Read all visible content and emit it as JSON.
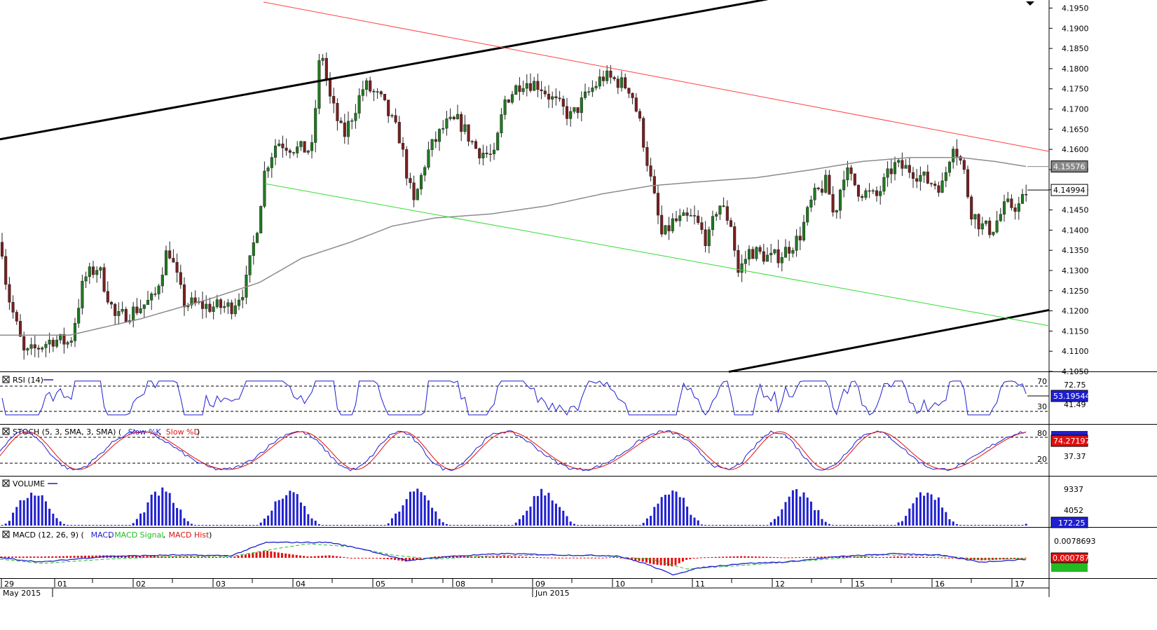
{
  "chart_data": {
    "type": "candlestick",
    "main": {
      "ylim": [
        4.105,
        4.197
      ],
      "yticks": [
        "4.1950",
        "4.1900",
        "4.1850",
        "4.1800",
        "4.1750",
        "4.1700",
        "4.1650",
        "4.1600",
        "4.1550",
        "4.1500",
        "4.1450",
        "4.1400",
        "4.1350",
        "4.1300",
        "4.1250",
        "4.1200",
        "4.1150",
        "4.1100",
        "4.1050"
      ],
      "ytick_values": [
        4.195,
        4.19,
        4.185,
        4.18,
        4.175,
        4.17,
        4.165,
        4.16,
        4.155,
        4.15,
        4.145,
        4.14,
        4.135,
        4.13,
        4.125,
        4.12,
        4.115,
        4.11,
        4.105
      ],
      "price_labels": [
        {
          "text": "4.15576",
          "value": 4.15576,
          "color": "#888888"
        },
        {
          "text": "4.14994",
          "value": 4.14994,
          "color": "#ffffff"
        }
      ],
      "colors": {
        "up": "#1f7a1f",
        "down": "#7a1f1f",
        "ma": "#8c8c8c",
        "red_line": "#ff4040",
        "green_line": "#33dd33",
        "channel": "#000000"
      }
    },
    "time_axis": {
      "day_labels": [
        "29",
        "01",
        "02",
        "03",
        "04",
        "05",
        "08",
        "09",
        "10",
        "11",
        "12",
        "15",
        "16",
        "17"
      ],
      "month_labels": [
        "May 2015",
        "Jun 2015"
      ]
    },
    "rsi": {
      "title": "RSI (14)",
      "levels": [
        "70",
        "30"
      ],
      "right_labels": [
        "72.75",
        "53.19544",
        "41.49"
      ],
      "current": 53.19544
    },
    "stoch": {
      "title_prefix": "STOCH (5, 3, SMA, 3, SMA)",
      "legend_k": "Slow %K",
      "legend_d": "Slow %D",
      "levels": [
        "80",
        "20"
      ],
      "right_labels": [
        "74.27197",
        "37.37"
      ],
      "current_d": 74.27197
    },
    "volume": {
      "title": "VOLUME",
      "right_labels": [
        "9337",
        "4052",
        "172.25"
      ],
      "current": 172.25
    },
    "macd": {
      "title_prefix": "MACD (12, 26, 9)",
      "legend_macd": "MACD",
      "legend_signal": "MACD Signal",
      "legend_hist": "MACD Hist",
      "right_labels": [
        "0.0078693",
        "0.0007873"
      ],
      "current_hist": 0.0007873
    }
  }
}
